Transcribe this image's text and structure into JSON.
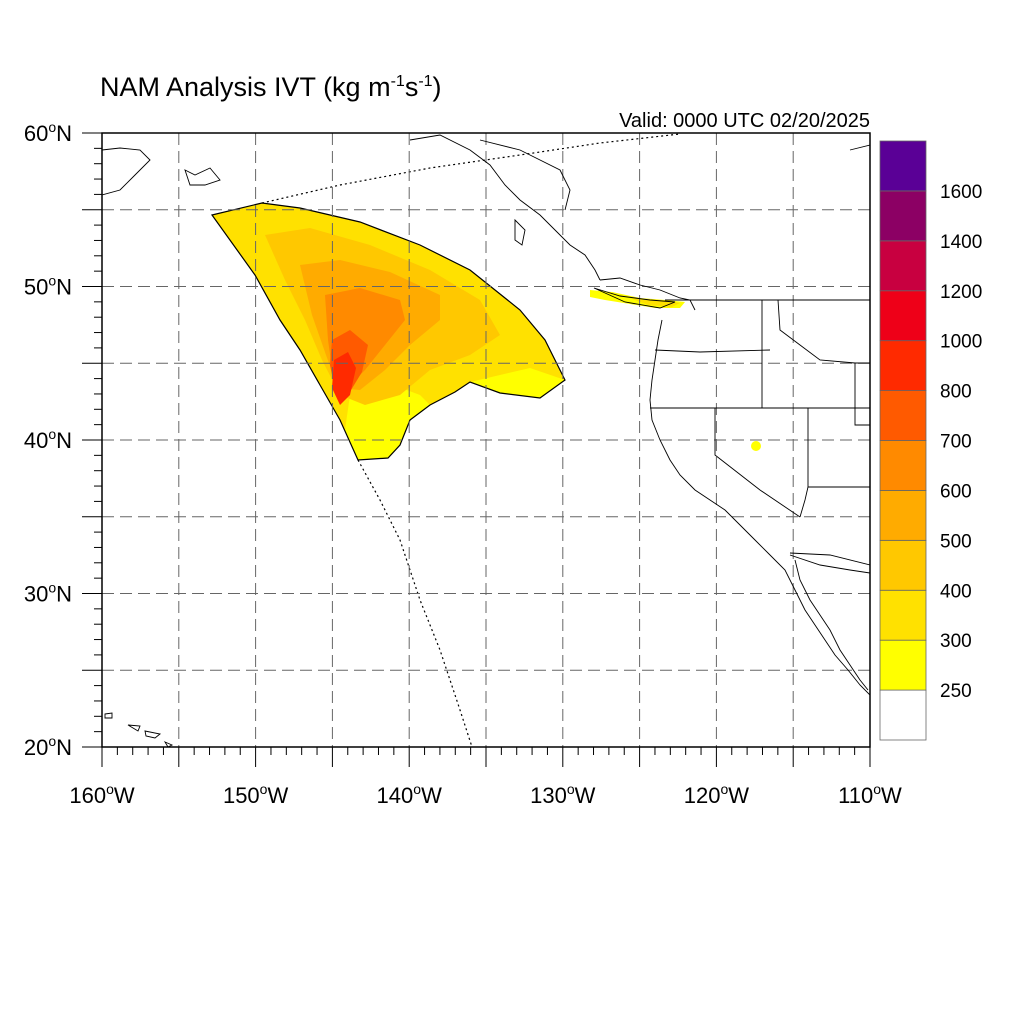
{
  "title": {
    "main": "NAM Analysis IVT (kg m",
    "exp1": "-1",
    "mid": "s",
    "exp2": "-1",
    "close": ")"
  },
  "valid_label": "Valid: 0000 UTC 02/20/2025",
  "map": {
    "lon_range": [
      -160,
      -110
    ],
    "lat_range": [
      20,
      60
    ],
    "grid": "dashed every 5 degrees",
    "lat_labels": [
      {
        "deg": "60",
        "hemi": "N",
        "value": 60
      },
      {
        "deg": "50",
        "hemi": "N",
        "value": 50
      },
      {
        "deg": "40",
        "hemi": "N",
        "value": 40
      },
      {
        "deg": "30",
        "hemi": "N",
        "value": 30
      },
      {
        "deg": "20",
        "hemi": "N",
        "value": 20
      }
    ],
    "lon_labels": [
      {
        "deg": "160",
        "hemi": "W",
        "value": -160
      },
      {
        "deg": "150",
        "hemi": "W",
        "value": -150
      },
      {
        "deg": "140",
        "hemi": "W",
        "value": -140
      },
      {
        "deg": "130",
        "hemi": "W",
        "value": -130
      },
      {
        "deg": "120",
        "hemi": "W",
        "value": -120
      },
      {
        "deg": "110",
        "hemi": "W",
        "value": -110
      }
    ]
  },
  "colorbar": {
    "labels": [
      "1600",
      "1400",
      "1200",
      "1000",
      "800",
      "700",
      "600",
      "500",
      "400",
      "300",
      "250"
    ],
    "colors": [
      "#ffffff",
      "#ffff00",
      "#ffe100",
      "#ffc800",
      "#ffab00",
      "#ff8a00",
      "#ff5a00",
      "#ff2a00",
      "#ee0018",
      "#c80040",
      "#8c0064",
      "#5a0096"
    ]
  }
}
